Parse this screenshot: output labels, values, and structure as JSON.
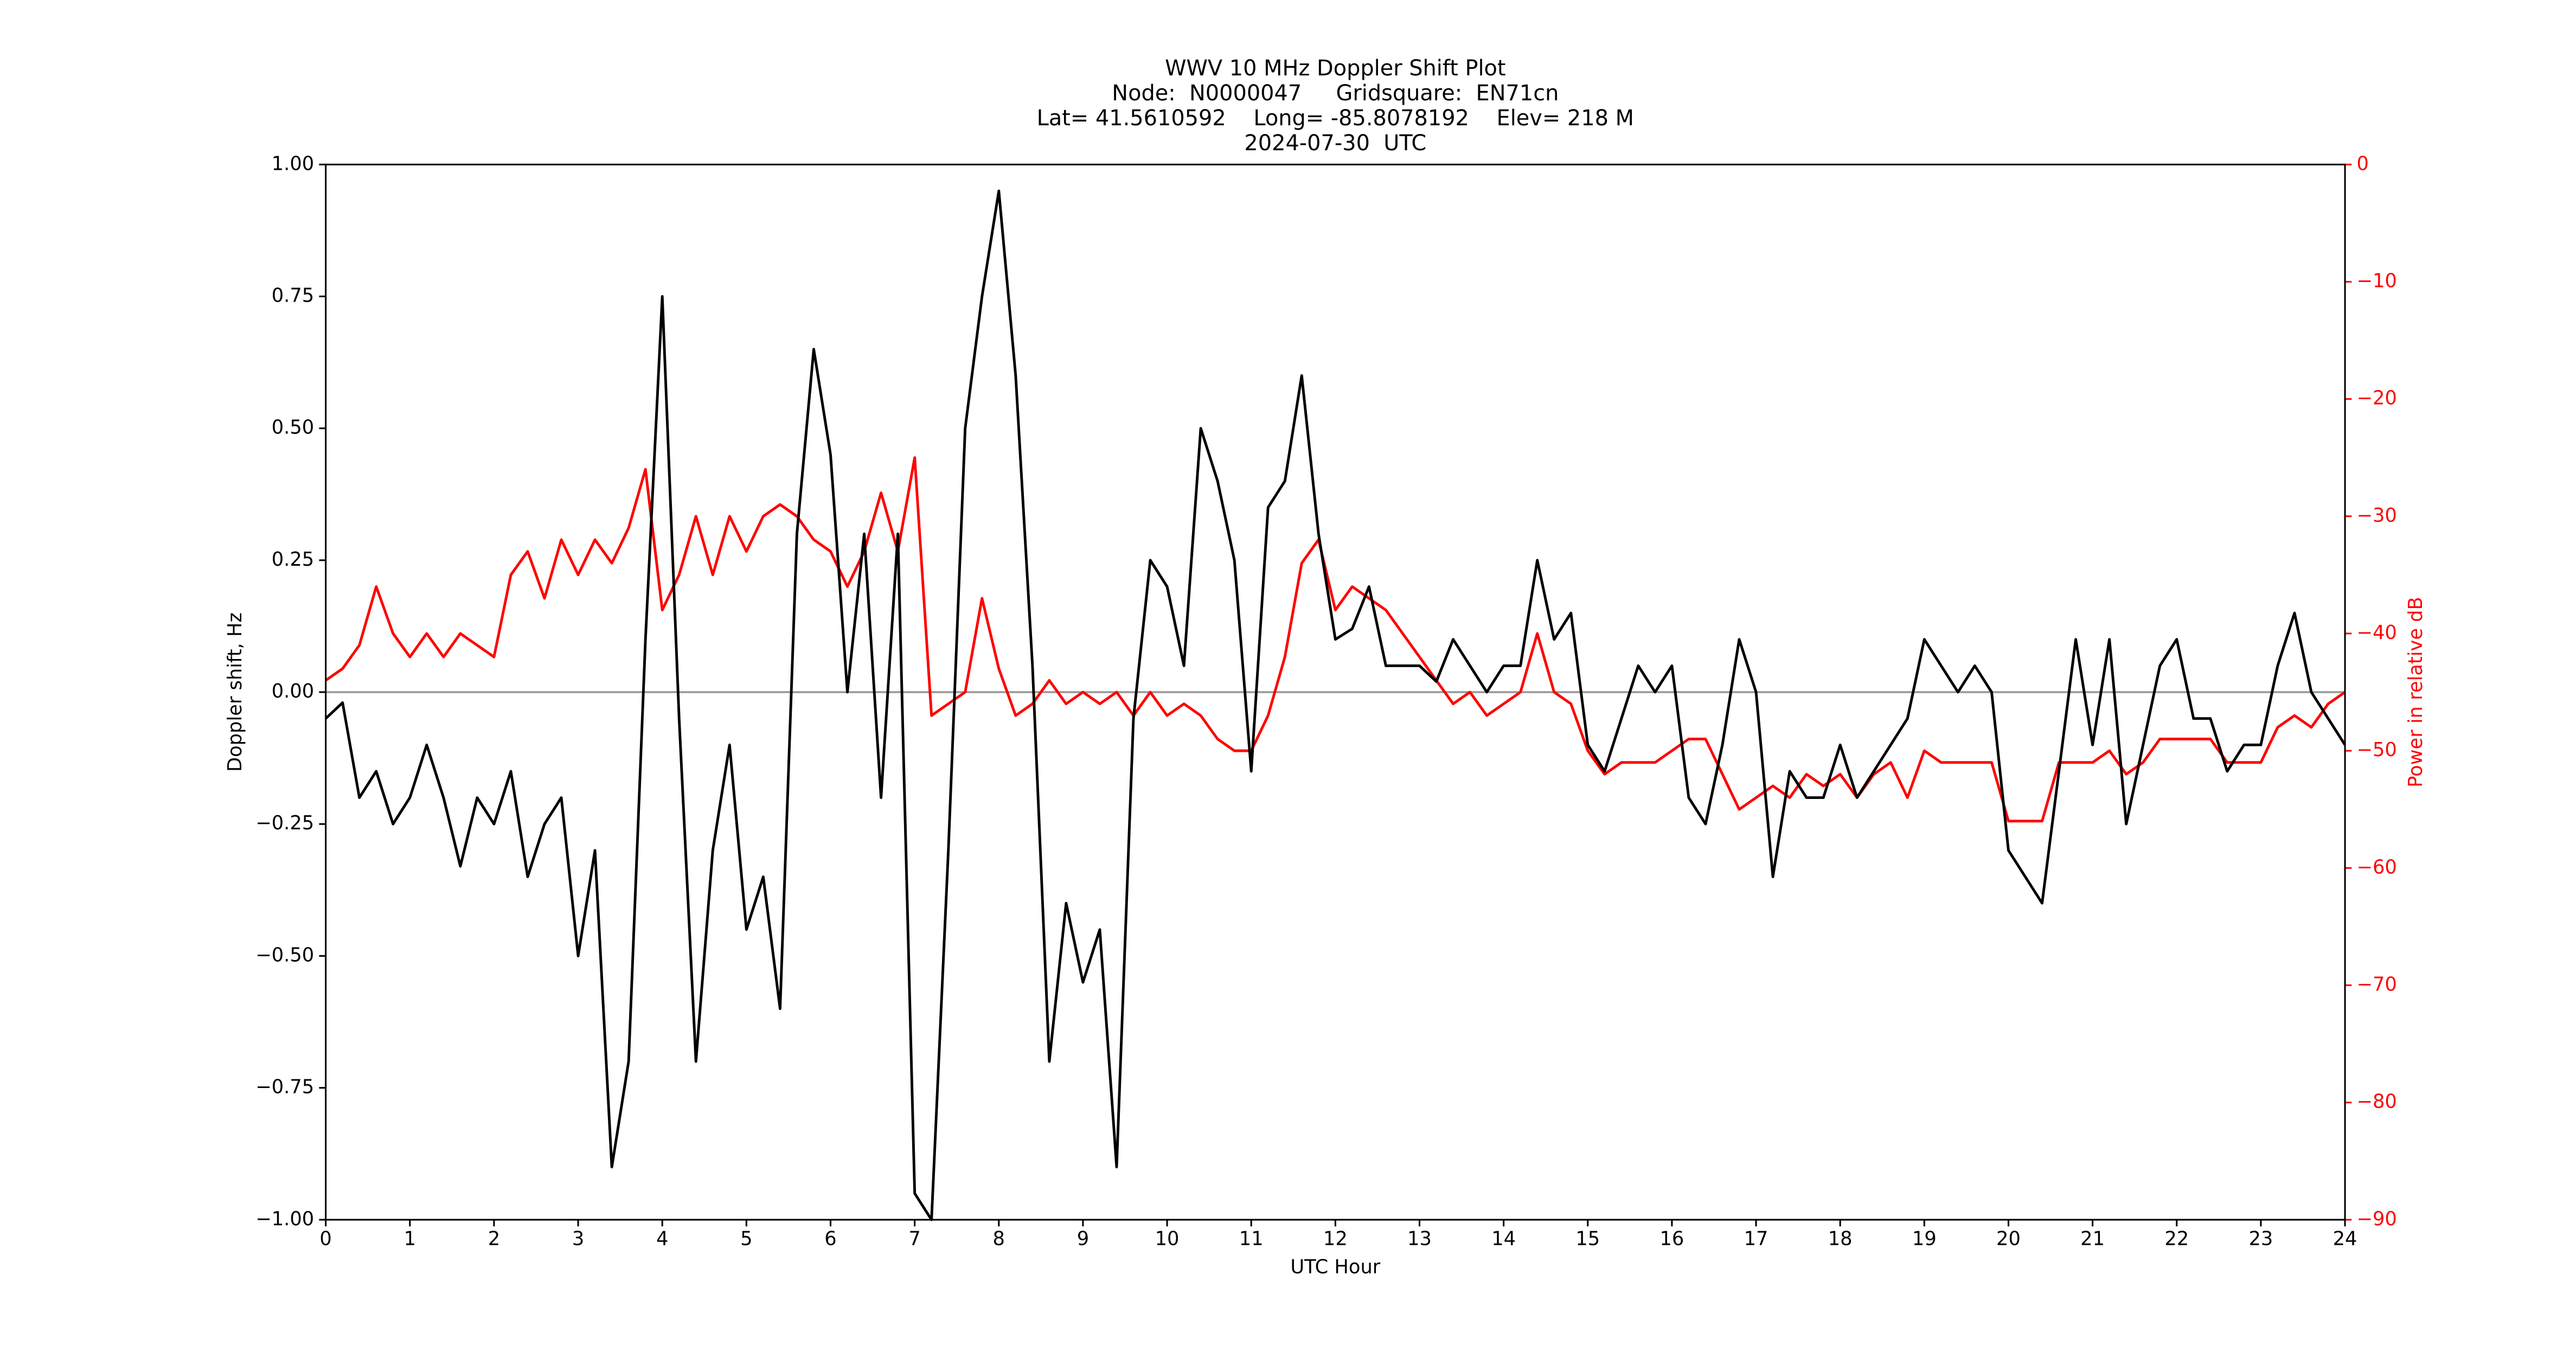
{
  "chart_data": {
    "type": "line",
    "title": [
      "WWV 10 MHz Doppler Shift Plot",
      "Node:  N0000047     Gridsquare:  EN71cn",
      "Lat= 41.5610592    Long= -85.8078192    Elev= 218 M",
      "2024-07-30  UTC"
    ],
    "xlabel": "UTC Hour",
    "ylabel": "Doppler shift, Hz",
    "y2label": "Power in relative dB",
    "x": [
      0,
      0.2,
      0.4,
      0.6,
      0.8,
      1,
      1.2,
      1.4,
      1.6,
      1.8,
      2,
      2.2,
      2.4,
      2.6,
      2.8,
      3,
      3.2,
      3.4,
      3.6,
      3.8,
      4,
      4.2,
      4.4,
      4.6,
      4.8,
      5,
      5.2,
      5.4,
      5.6,
      5.8,
      6,
      6.2,
      6.4,
      6.6,
      6.8,
      7,
      7.2,
      7.4,
      7.6,
      7.8,
      8,
      8.2,
      8.4,
      8.6,
      8.8,
      9,
      9.2,
      9.4,
      9.6,
      9.8,
      10,
      10.2,
      10.4,
      10.6,
      10.8,
      11,
      11.2,
      11.4,
      11.6,
      11.8,
      12,
      12.2,
      12.4,
      12.6,
      12.8,
      13,
      13.2,
      13.4,
      13.6,
      13.8,
      14,
      14.2,
      14.4,
      14.6,
      14.8,
      15,
      15.2,
      15.4,
      15.6,
      15.8,
      16,
      16.2,
      16.4,
      16.6,
      16.8,
      17,
      17.2,
      17.4,
      17.6,
      17.8,
      18,
      18.2,
      18.4,
      18.6,
      18.8,
      19,
      19.2,
      19.4,
      19.6,
      19.8,
      20,
      20.2,
      20.4,
      20.6,
      20.8,
      21,
      21.2,
      21.4,
      21.6,
      21.8,
      22,
      22.2,
      22.4,
      22.6,
      22.8,
      23,
      23.2,
      23.4,
      23.6,
      23.8,
      24
    ],
    "series": [
      {
        "color": "#000000",
        "values": [
          -0.05,
          -0.02,
          -0.2,
          -0.15,
          -0.25,
          -0.2,
          -0.1,
          -0.2,
          -0.33,
          -0.2,
          -0.25,
          -0.15,
          -0.35,
          -0.25,
          -0.2,
          -0.5,
          -0.3,
          -0.9,
          -0.7,
          0.1,
          0.75,
          -0.05,
          -0.7,
          -0.3,
          -0.1,
          -0.45,
          -0.35,
          -0.6,
          0.3,
          0.65,
          0.45,
          0,
          0.3,
          -0.2,
          0.3,
          -0.95,
          -1,
          -0.3,
          0.5,
          0.75,
          0.95,
          0.6,
          0.05,
          -0.7,
          -0.4,
          -0.55,
          -0.45,
          -0.9,
          -0.05,
          0.25,
          0.2,
          0.05,
          0.5,
          0.4,
          0.25,
          -0.15,
          0.35,
          0.4,
          0.6,
          0.3,
          0.1,
          0.12,
          0.2,
          0.05,
          0.05,
          0.05,
          0.02,
          0.1,
          0.05,
          0,
          0.05,
          0.05,
          0.25,
          0.1,
          0.15,
          -0.1,
          -0.15,
          -0.05,
          0.05,
          0,
          0.05,
          -0.2,
          -0.25,
          -0.1,
          0.1,
          0,
          -0.35,
          -0.15,
          -0.2,
          -0.2,
          -0.1,
          -0.2,
          -0.15,
          -0.1,
          -0.05,
          0.1,
          0.05,
          0,
          0.05,
          0,
          -0.3,
          -0.35,
          -0.4,
          -0.15,
          0.1,
          -0.1,
          0.1,
          -0.25,
          -0.1,
          0.05,
          0.1,
          -0.05,
          -0.05,
          -0.15,
          -0.1,
          -0.1,
          0.05,
          0.15,
          0,
          -0.05,
          -0.1
        ]
      },
      {
        "color": "#ff0000",
        "axis": "y2",
        "values": [
          -44,
          -43,
          -41,
          -36,
          -40,
          -42,
          -40,
          -42,
          -40,
          -41,
          -42,
          -35,
          -33,
          -37,
          -32,
          -35,
          -32,
          -34,
          -31,
          -26,
          -38,
          -35,
          -30,
          -35,
          -30,
          -33,
          -30,
          -29,
          -30,
          -32,
          -33,
          -36,
          -33,
          -28,
          -33,
          -25,
          -47,
          -46,
          -45,
          -37,
          -43,
          -47,
          -46,
          -44,
          -46,
          -45,
          -46,
          -45,
          -47,
          -45,
          -47,
          -46,
          -47,
          -49,
          -50,
          -50,
          -47,
          -42,
          -34,
          -32,
          -38,
          -36,
          -37,
          -38,
          -40,
          -42,
          -44,
          -46,
          -45,
          -47,
          -46,
          -45,
          -40,
          -45,
          -46,
          -50,
          -52,
          -51,
          -51,
          -51,
          -50,
          -49,
          -49,
          -52,
          -55,
          -54,
          -53,
          -54,
          -52,
          -53,
          -52,
          -54,
          -52,
          -51,
          -54,
          -50,
          -51,
          -51,
          -51,
          -51,
          -56,
          -56,
          -56,
          -51,
          -51,
          -51,
          -50,
          -52,
          -51,
          -49,
          -49,
          -49,
          -49,
          -51,
          -51,
          -51,
          -48,
          -47,
          -48,
          -46,
          -45
        ]
      }
    ],
    "xlim": [
      0,
      24
    ],
    "xticks": [
      0,
      1,
      2,
      3,
      4,
      5,
      6,
      7,
      8,
      9,
      10,
      11,
      12,
      13,
      14,
      15,
      16,
      17,
      18,
      19,
      20,
      21,
      22,
      23,
      24
    ],
    "ylim": [
      -1,
      1
    ],
    "yticks": [
      {
        "value": -1,
        "label": "−1.00"
      },
      {
        "value": -0.75,
        "label": "−0.75"
      },
      {
        "value": -0.5,
        "label": "−0.50"
      },
      {
        "value": -0.25,
        "label": "−0.25"
      },
      {
        "value": 0,
        "label": "0.00"
      },
      {
        "value": 0.25,
        "label": "0.25"
      },
      {
        "value": 0.5,
        "label": "0.50"
      },
      {
        "value": 0.75,
        "label": "0.75"
      },
      {
        "value": 1,
        "label": "1.00"
      }
    ],
    "y2lim": [
      -90,
      0
    ],
    "y2ticks": [
      {
        "value": -90,
        "label": "−90"
      },
      {
        "value": -80,
        "label": "−80"
      },
      {
        "value": -70,
        "label": "−70"
      },
      {
        "value": -60,
        "label": "−60"
      },
      {
        "value": -50,
        "label": "−50"
      },
      {
        "value": -40,
        "label": "−40"
      },
      {
        "value": -30,
        "label": "−30"
      },
      {
        "value": -20,
        "label": "−20"
      },
      {
        "value": -10,
        "label": "−10"
      },
      0
    ],
    "y2color": "#ff0000",
    "hline": 0,
    "hline_color": "#999999"
  }
}
